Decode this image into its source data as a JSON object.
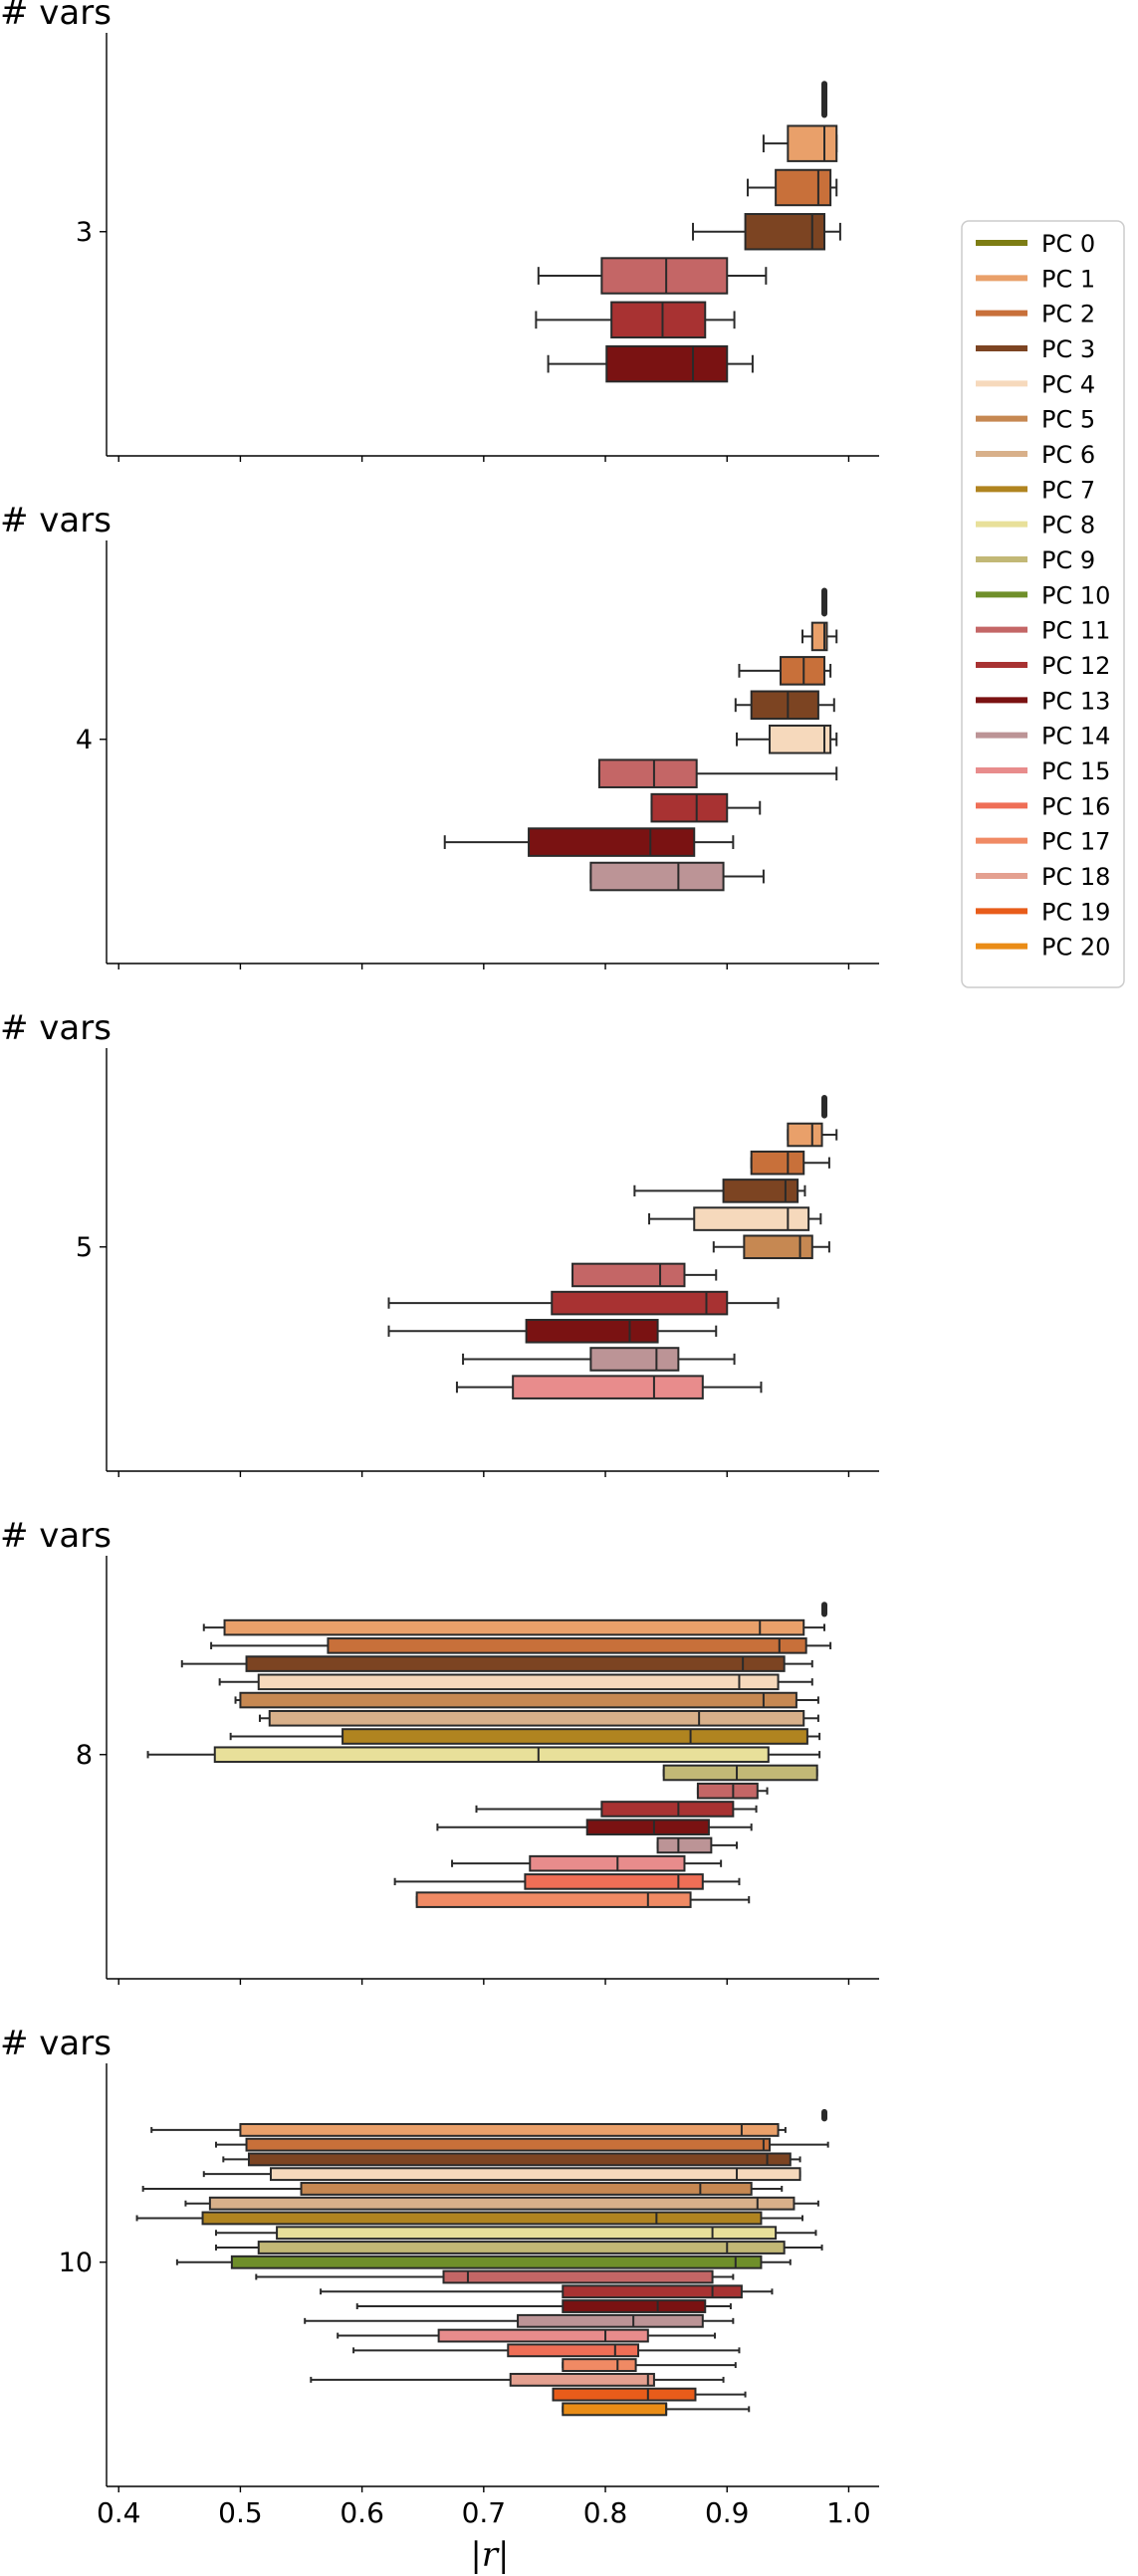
{
  "chart_data": {
    "type": "boxplot",
    "orientation": "horizontal",
    "xlabel": "|r|",
    "xlim": [
      0.39,
      1.025
    ],
    "xticks": [
      "0.4",
      "0.5",
      "0.6",
      "0.7",
      "0.8",
      "0.9",
      "1.0"
    ],
    "legend_position": "right",
    "legend": [
      {
        "name": "PC 0",
        "color": "#7d7d14"
      },
      {
        "name": "PC 1",
        "color": "#e9a06a"
      },
      {
        "name": "PC 2",
        "color": "#c8703a"
      },
      {
        "name": "PC 3",
        "color": "#7c4422"
      },
      {
        "name": "PC 4",
        "color": "#f6d9bc"
      },
      {
        "name": "PC 5",
        "color": "#c68852"
      },
      {
        "name": "PC 6",
        "color": "#d8b08a"
      },
      {
        "name": "PC 7",
        "color": "#b08420"
      },
      {
        "name": "PC 8",
        "color": "#e8e09a"
      },
      {
        "name": "PC 9",
        "color": "#c2b876"
      },
      {
        "name": "PC 10",
        "color": "#6f8f2a"
      },
      {
        "name": "PC 11",
        "color": "#c46666"
      },
      {
        "name": "PC 12",
        "color": "#a83232"
      },
      {
        "name": "PC 13",
        "color": "#7a1212"
      },
      {
        "name": "PC 14",
        "color": "#bc9496"
      },
      {
        "name": "PC 15",
        "color": "#e88c8c"
      },
      {
        "name": "PC 16",
        "color": "#ef6e56"
      },
      {
        "name": "PC 17",
        "color": "#f08a64"
      },
      {
        "name": "PC 18",
        "color": "#e4a090"
      },
      {
        "name": "PC 19",
        "color": "#e85c1a"
      },
      {
        "name": "PC 20",
        "color": "#ea8c16"
      }
    ],
    "panels": [
      {
        "title": "# vars",
        "ytick": "3",
        "outlier": {
          "value": 0.98,
          "pc": "PC 0"
        },
        "boxes": [
          {
            "pc": "PC 1",
            "wlo": 0.93,
            "q1": 0.95,
            "med": 0.98,
            "q3": 0.99,
            "whi": 0.99
          },
          {
            "pc": "PC 2",
            "wlo": 0.917,
            "q1": 0.94,
            "med": 0.975,
            "q3": 0.985,
            "whi": 0.99
          },
          {
            "pc": "PC 3",
            "wlo": 0.872,
            "q1": 0.915,
            "med": 0.97,
            "q3": 0.98,
            "whi": 0.993
          },
          {
            "pc": "PC 11",
            "wlo": 0.745,
            "q1": 0.797,
            "med": 0.85,
            "q3": 0.9,
            "whi": 0.932
          },
          {
            "pc": "PC 12",
            "wlo": 0.743,
            "q1": 0.805,
            "med": 0.847,
            "q3": 0.882,
            "whi": 0.906
          },
          {
            "pc": "PC 13",
            "wlo": 0.753,
            "q1": 0.801,
            "med": 0.872,
            "q3": 0.9,
            "whi": 0.921
          }
        ]
      },
      {
        "title": "# vars",
        "ytick": "4",
        "outlier": {
          "value": 0.98,
          "pc": "PC 0"
        },
        "boxes": [
          {
            "pc": "PC 1",
            "wlo": 0.962,
            "q1": 0.97,
            "med": 0.98,
            "q3": 0.982,
            "whi": 0.99
          },
          {
            "pc": "PC 2",
            "wlo": 0.91,
            "q1": 0.944,
            "med": 0.963,
            "q3": 0.98,
            "whi": 0.985
          },
          {
            "pc": "PC 3",
            "wlo": 0.907,
            "q1": 0.92,
            "med": 0.95,
            "q3": 0.975,
            "whi": 0.988
          },
          {
            "pc": "PC 4",
            "wlo": 0.908,
            "q1": 0.935,
            "med": 0.98,
            "q3": 0.985,
            "whi": 0.99
          },
          {
            "pc": "PC 11",
            "wlo": 0.795,
            "q1": 0.795,
            "med": 0.84,
            "q3": 0.875,
            "whi": 0.99
          },
          {
            "pc": "PC 12",
            "wlo": 0.838,
            "q1": 0.838,
            "med": 0.875,
            "q3": 0.9,
            "whi": 0.927
          },
          {
            "pc": "PC 13",
            "wlo": 0.668,
            "q1": 0.737,
            "med": 0.837,
            "q3": 0.873,
            "whi": 0.905
          },
          {
            "pc": "PC 14",
            "wlo": 0.788,
            "q1": 0.788,
            "med": 0.86,
            "q3": 0.897,
            "whi": 0.93
          }
        ]
      },
      {
        "title": "# vars",
        "ytick": "5",
        "outlier": {
          "value": 0.98,
          "pc": "PC 0"
        },
        "boxes": [
          {
            "pc": "PC 1",
            "wlo": 0.95,
            "q1": 0.95,
            "med": 0.97,
            "q3": 0.978,
            "whi": 0.99
          },
          {
            "pc": "PC 2",
            "wlo": 0.92,
            "q1": 0.92,
            "med": 0.95,
            "q3": 0.963,
            "whi": 0.984
          },
          {
            "pc": "PC 3",
            "wlo": 0.824,
            "q1": 0.897,
            "med": 0.948,
            "q3": 0.958,
            "whi": 0.964
          },
          {
            "pc": "PC 4",
            "wlo": 0.836,
            "q1": 0.873,
            "med": 0.95,
            "q3": 0.967,
            "whi": 0.977
          },
          {
            "pc": "PC 5",
            "wlo": 0.889,
            "q1": 0.914,
            "med": 0.96,
            "q3": 0.97,
            "whi": 0.984
          },
          {
            "pc": "PC 11",
            "wlo": 0.773,
            "q1": 0.773,
            "med": 0.845,
            "q3": 0.865,
            "whi": 0.891
          },
          {
            "pc": "PC 12",
            "wlo": 0.622,
            "q1": 0.756,
            "med": 0.883,
            "q3": 0.9,
            "whi": 0.942
          },
          {
            "pc": "PC 13",
            "wlo": 0.622,
            "q1": 0.735,
            "med": 0.82,
            "q3": 0.843,
            "whi": 0.891
          },
          {
            "pc": "PC 14",
            "wlo": 0.683,
            "q1": 0.788,
            "med": 0.842,
            "q3": 0.86,
            "whi": 0.906
          },
          {
            "pc": "PC 15",
            "wlo": 0.678,
            "q1": 0.724,
            "med": 0.84,
            "q3": 0.88,
            "whi": 0.928
          }
        ]
      },
      {
        "title": "# vars",
        "ytick": "8",
        "outlier": {
          "value": 0.98,
          "pc": "PC 0"
        },
        "boxes": [
          {
            "pc": "PC 1",
            "wlo": 0.47,
            "q1": 0.487,
            "med": 0.927,
            "q3": 0.963,
            "whi": 0.98
          },
          {
            "pc": "PC 2",
            "wlo": 0.476,
            "q1": 0.572,
            "med": 0.943,
            "q3": 0.965,
            "whi": 0.985
          },
          {
            "pc": "PC 3",
            "wlo": 0.452,
            "q1": 0.505,
            "med": 0.913,
            "q3": 0.947,
            "whi": 0.97
          },
          {
            "pc": "PC 4",
            "wlo": 0.483,
            "q1": 0.515,
            "med": 0.91,
            "q3": 0.942,
            "whi": 0.97
          },
          {
            "pc": "PC 5",
            "wlo": 0.496,
            "q1": 0.5,
            "med": 0.93,
            "q3": 0.957,
            "whi": 0.975
          },
          {
            "pc": "PC 6",
            "wlo": 0.516,
            "q1": 0.524,
            "med": 0.877,
            "q3": 0.963,
            "whi": 0.975
          },
          {
            "pc": "PC 7",
            "wlo": 0.492,
            "q1": 0.584,
            "med": 0.87,
            "q3": 0.966,
            "whi": 0.976
          },
          {
            "pc": "PC 8",
            "wlo": 0.424,
            "q1": 0.479,
            "med": 0.745,
            "q3": 0.934,
            "whi": 0.976
          },
          {
            "pc": "PC 9",
            "wlo": 0.848,
            "q1": 0.848,
            "med": 0.908,
            "q3": 0.974,
            "whi": 0.974
          },
          {
            "pc": "PC 11",
            "wlo": 0.876,
            "q1": 0.876,
            "med": 0.905,
            "q3": 0.925,
            "whi": 0.933
          },
          {
            "pc": "PC 12",
            "wlo": 0.694,
            "q1": 0.797,
            "med": 0.86,
            "q3": 0.905,
            "whi": 0.924
          },
          {
            "pc": "PC 13",
            "wlo": 0.662,
            "q1": 0.785,
            "med": 0.84,
            "q3": 0.885,
            "whi": 0.92
          },
          {
            "pc": "PC 14",
            "wlo": 0.843,
            "q1": 0.843,
            "med": 0.86,
            "q3": 0.887,
            "whi": 0.908
          },
          {
            "pc": "PC 15",
            "wlo": 0.674,
            "q1": 0.738,
            "med": 0.81,
            "q3": 0.865,
            "whi": 0.895
          },
          {
            "pc": "PC 16",
            "wlo": 0.627,
            "q1": 0.734,
            "med": 0.86,
            "q3": 0.88,
            "whi": 0.91
          },
          {
            "pc": "PC 17",
            "wlo": 0.645,
            "q1": 0.645,
            "med": 0.835,
            "q3": 0.87,
            "whi": 0.918
          }
        ]
      },
      {
        "title": "# vars",
        "ytick": "10",
        "outlier": {
          "value": 0.98,
          "pc": "PC 0"
        },
        "boxes": [
          {
            "pc": "PC 1",
            "wlo": 0.427,
            "q1": 0.5,
            "med": 0.912,
            "q3": 0.942,
            "whi": 0.948
          },
          {
            "pc": "PC 2",
            "wlo": 0.48,
            "q1": 0.505,
            "med": 0.93,
            "q3": 0.935,
            "whi": 0.983
          },
          {
            "pc": "PC 3",
            "wlo": 0.486,
            "q1": 0.507,
            "med": 0.933,
            "q3": 0.952,
            "whi": 0.96
          },
          {
            "pc": "PC 4",
            "wlo": 0.47,
            "q1": 0.525,
            "med": 0.908,
            "q3": 0.96,
            "whi": 0.96
          },
          {
            "pc": "PC 5",
            "wlo": 0.42,
            "q1": 0.55,
            "med": 0.878,
            "q3": 0.92,
            "whi": 0.945
          },
          {
            "pc": "PC 6",
            "wlo": 0.455,
            "q1": 0.475,
            "med": 0.925,
            "q3": 0.955,
            "whi": 0.975
          },
          {
            "pc": "PC 7",
            "wlo": 0.415,
            "q1": 0.469,
            "med": 0.842,
            "q3": 0.928,
            "whi": 0.962
          },
          {
            "pc": "PC 8",
            "wlo": 0.48,
            "q1": 0.53,
            "med": 0.888,
            "q3": 0.94,
            "whi": 0.973
          },
          {
            "pc": "PC 9",
            "wlo": 0.48,
            "q1": 0.515,
            "med": 0.9,
            "q3": 0.947,
            "whi": 0.978
          },
          {
            "pc": "PC 10",
            "wlo": 0.448,
            "q1": 0.493,
            "med": 0.907,
            "q3": 0.928,
            "whi": 0.952
          },
          {
            "pc": "PC 11",
            "wlo": 0.513,
            "q1": 0.667,
            "med": 0.687,
            "q3": 0.888,
            "whi": 0.905
          },
          {
            "pc": "PC 12",
            "wlo": 0.566,
            "q1": 0.765,
            "med": 0.888,
            "q3": 0.912,
            "whi": 0.937
          },
          {
            "pc": "PC 13",
            "wlo": 0.596,
            "q1": 0.765,
            "med": 0.843,
            "q3": 0.882,
            "whi": 0.903
          },
          {
            "pc": "PC 14",
            "wlo": 0.553,
            "q1": 0.728,
            "med": 0.823,
            "q3": 0.88,
            "whi": 0.905
          },
          {
            "pc": "PC 15",
            "wlo": 0.58,
            "q1": 0.663,
            "med": 0.8,
            "q3": 0.835,
            "whi": 0.89
          },
          {
            "pc": "PC 16",
            "wlo": 0.593,
            "q1": 0.72,
            "med": 0.808,
            "q3": 0.827,
            "whi": 0.91
          },
          {
            "pc": "PC 17",
            "wlo": 0.765,
            "q1": 0.765,
            "med": 0.81,
            "q3": 0.825,
            "whi": 0.907
          },
          {
            "pc": "PC 18",
            "wlo": 0.558,
            "q1": 0.722,
            "med": 0.835,
            "q3": 0.84,
            "whi": 0.897
          },
          {
            "pc": "PC 19",
            "wlo": 0.757,
            "q1": 0.757,
            "med": 0.835,
            "q3": 0.874,
            "whi": 0.915
          },
          {
            "pc": "PC 20",
            "wlo": 0.765,
            "q1": 0.765,
            "med": 0.85,
            "q3": 0.85,
            "whi": 0.918
          }
        ]
      }
    ]
  }
}
